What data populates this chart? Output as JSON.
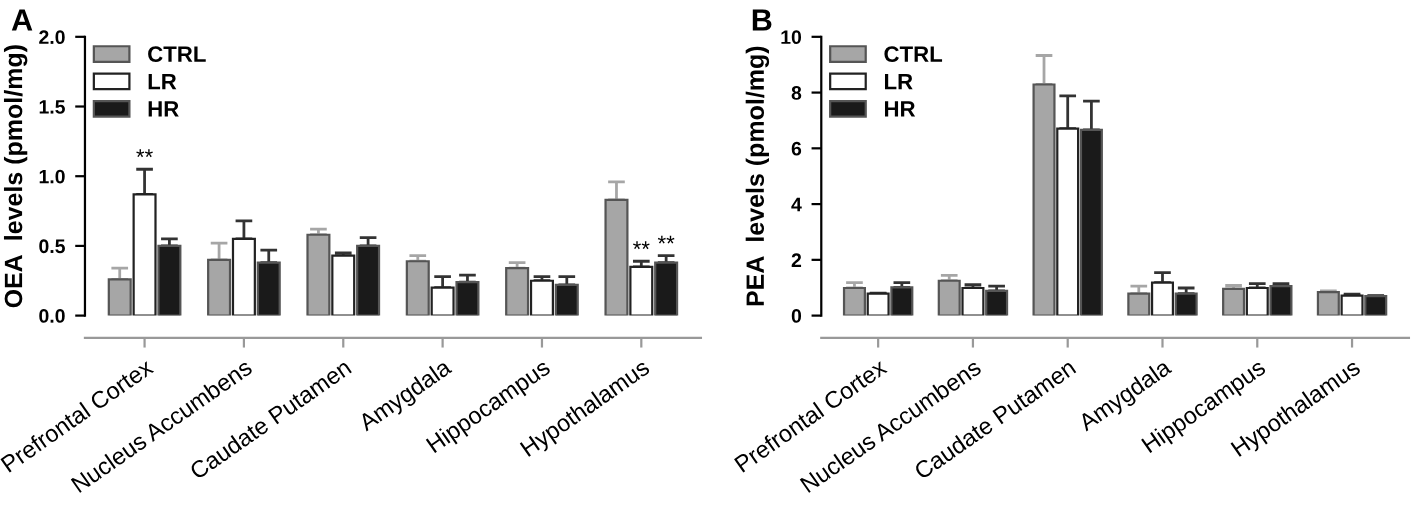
{
  "chart_data": [
    {
      "type": "bar",
      "title": "A",
      "ylabel": "OEA  levels (pmol/mg)",
      "categories": [
        "Prefrontal Cortex",
        "Nucleus Accumbens",
        "Caudate Putamen",
        "Amygdala",
        "Hippocampus",
        "Hypothalamus"
      ],
      "series": [
        {
          "name": "CTRL",
          "color": "#a6a6a6",
          "values": [
            0.26,
            0.4,
            0.58,
            0.39,
            0.34,
            0.83
          ],
          "errors": [
            [
              0.26,
              0.34
            ],
            [
              0.4,
              0.52
            ],
            [
              0.58,
              0.62
            ],
            [
              0.39,
              0.43
            ],
            [
              0.34,
              0.38
            ],
            [
              0.83,
              0.96
            ]
          ]
        },
        {
          "name": "LR",
          "color": "#ffffff",
          "values": [
            0.87,
            0.55,
            0.43,
            0.2,
            0.25,
            0.35
          ],
          "errors": [
            [
              0.87,
              1.05
            ],
            [
              0.55,
              0.68
            ],
            [
              0.43,
              0.45
            ],
            [
              0.2,
              0.28
            ],
            [
              0.25,
              0.28
            ],
            [
              0.35,
              0.39
            ]
          ]
        },
        {
          "name": "HR",
          "color": "#1a1a1a",
          "values": [
            0.5,
            0.38,
            0.5,
            0.24,
            0.22,
            0.38
          ],
          "errors": [
            [
              0.5,
              0.55
            ],
            [
              0.38,
              0.47
            ],
            [
              0.5,
              0.56
            ],
            [
              0.24,
              0.29
            ],
            [
              0.22,
              0.28
            ],
            [
              0.38,
              0.43
            ]
          ]
        }
      ],
      "ylim": [
        0,
        2.0
      ],
      "yticks": [
        {
          "value": 0,
          "label": "0.0"
        },
        {
          "value": 0.5,
          "label": "0.5"
        },
        {
          "value": 1.0,
          "label": "1.0"
        },
        {
          "value": 1.5,
          "label": "1.5"
        },
        {
          "value": 2.0,
          "label": "2.0"
        }
      ],
      "annotations": [
        {
          "text": "**",
          "x": "Prefrontal Cortex",
          "y": 1.05
        },
        {
          "text": "**",
          "x": "Hypothalamus",
          "y": 0.39
        },
        {
          "text": "**",
          "x": "Hypothalamus",
          "y": 0.43
        }
      ],
      "legend": "top left",
      "grid": false
    },
    {
      "type": "bar",
      "title": "B",
      "ylabel": "PEA  levels (pmol/mg)",
      "categories": [
        "Prefrontal Cortex",
        "Nucleus Accumbens",
        "Caudate Putamen",
        "Amygdala",
        "Hippocampus",
        "Hypothalamus"
      ],
      "series": [
        {
          "name": "CTRL",
          "color": "#a6a6a6",
          "values": [
            0.99,
            1.25,
            8.29,
            0.79,
            0.96,
            0.84
          ],
          "errors": [
            [
              0.99,
              1.18
            ],
            [
              1.25,
              1.44
            ],
            [
              8.29,
              9.33
            ],
            [
              0.79,
              1.06
            ],
            [
              0.96,
              1.08
            ],
            [
              0.84,
              0.89
            ]
          ]
        },
        {
          "name": "LR",
          "color": "#ffffff",
          "values": [
            0.79,
            0.99,
            6.71,
            1.18,
            0.99,
            0.72
          ],
          "errors": [
            [
              0.79,
              0.81
            ],
            [
              0.99,
              1.11
            ],
            [
              6.71,
              7.88
            ],
            [
              1.18,
              1.54
            ],
            [
              0.99,
              1.15
            ],
            [
              0.72,
              0.77
            ]
          ]
        },
        {
          "name": "HR",
          "color": "#1a1a1a",
          "values": [
            1.01,
            0.89,
            6.66,
            0.79,
            1.06,
            0.7
          ],
          "errors": [
            [
              1.01,
              1.18
            ],
            [
              0.89,
              1.06
            ],
            [
              6.66,
              7.69
            ],
            [
              0.79,
              0.99
            ],
            [
              1.06,
              1.15
            ],
            [
              0.7,
              0.72
            ]
          ]
        }
      ],
      "ylim": [
        0,
        10
      ],
      "yticks": [
        0,
        2,
        4,
        6,
        8,
        10
      ],
      "legend": "top left",
      "grid": false
    }
  ]
}
